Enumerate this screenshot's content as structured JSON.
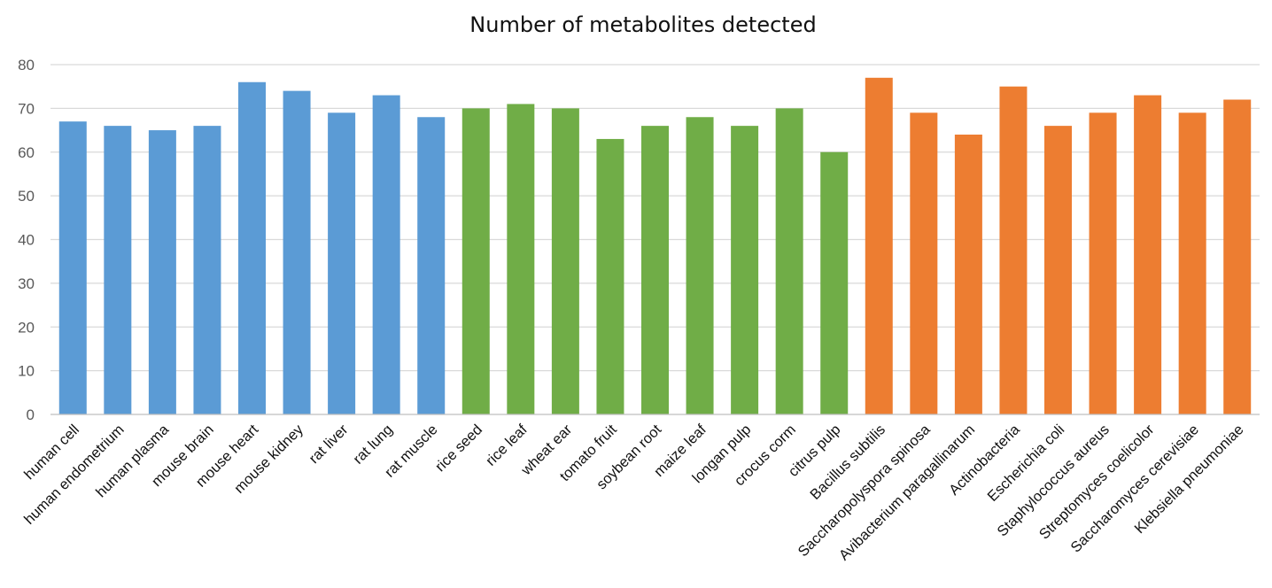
{
  "chart_data": {
    "type": "bar",
    "title": "Number of metabolites detected",
    "xlabel": "",
    "ylabel": "",
    "ylim": [
      0,
      80
    ],
    "yticks": [
      0,
      10,
      20,
      30,
      40,
      50,
      60,
      70,
      80
    ],
    "grid": true,
    "legend": "none",
    "categories": [
      "human cell",
      "human endometrium",
      "human plasma",
      "mouse brain",
      "mouse heart",
      "mouse kidney",
      "rat liver",
      "rat lung",
      "rat muscle",
      "rice seed",
      "rice leaf",
      "wheat ear",
      "tomato fruit",
      "soybean root",
      "maize leaf",
      "longan pulp",
      "crocus corm",
      "citrus pulp",
      "Bacillus subtilis",
      "Saccharopolyspora spinosa",
      "Avibacterium paragallinarum",
      "Actinobacteria",
      "Escherichia coli",
      "Staphylococcus aureus",
      "Streptomyces coelicolor",
      "Saccharomyces cerevisiae",
      "Klebsiella pneumoniae"
    ],
    "values": [
      67,
      66,
      65,
      66,
      76,
      74,
      69,
      73,
      68,
      70,
      71,
      70,
      63,
      66,
      68,
      66,
      70,
      60,
      77,
      69,
      64,
      75,
      66,
      69,
      73,
      69,
      72
    ],
    "bar_colors": [
      "#5b9bd5",
      "#5b9bd5",
      "#5b9bd5",
      "#5b9bd5",
      "#5b9bd5",
      "#5b9bd5",
      "#5b9bd5",
      "#5b9bd5",
      "#5b9bd5",
      "#70ad47",
      "#70ad47",
      "#70ad47",
      "#70ad47",
      "#70ad47",
      "#70ad47",
      "#70ad47",
      "#70ad47",
      "#70ad47",
      "#ed7d31",
      "#ed7d31",
      "#ed7d31",
      "#ed7d31",
      "#ed7d31",
      "#ed7d31",
      "#ed7d31",
      "#ed7d31",
      "#ed7d31"
    ]
  },
  "colors": {
    "gridline": "#d9d9d9",
    "axis": "#bfbfbf"
  }
}
